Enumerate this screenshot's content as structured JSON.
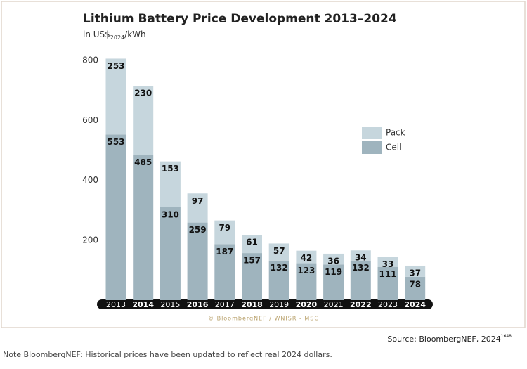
{
  "chart_data": {
    "type": "stacked_bar",
    "title": "Lithium Battery Price Development 2013–2024",
    "subtitle": {
      "prefix": "in US$",
      "subscript": "2024",
      "suffix": "/kWh"
    },
    "categories": [
      "2013",
      "2014",
      "2015",
      "2016",
      "2017",
      "2018",
      "2019",
      "2020",
      "2021",
      "2022",
      "2023",
      "2024"
    ],
    "series": [
      {
        "name": "Cell",
        "color": "#9fb4be",
        "values": [
          553,
          485,
          310,
          259,
          187,
          157,
          132,
          123,
          119,
          132,
          111,
          78
        ]
      },
      {
        "name": "Pack",
        "color": "#c6d6dd",
        "values": [
          253,
          230,
          153,
          97,
          79,
          61,
          57,
          42,
          36,
          34,
          33,
          37
        ]
      }
    ],
    "ylim": [
      0,
      800
    ],
    "yticks": [
      200,
      400,
      600,
      800
    ],
    "credit": "© BloombergNEF / WNISR - MSC",
    "source": {
      "text": "Source: BloombergNEF, 2024",
      "superscript": "1648"
    },
    "note": "Note BloombergNEF: Historical prices have been updated to reflect real 2024 dollars."
  }
}
